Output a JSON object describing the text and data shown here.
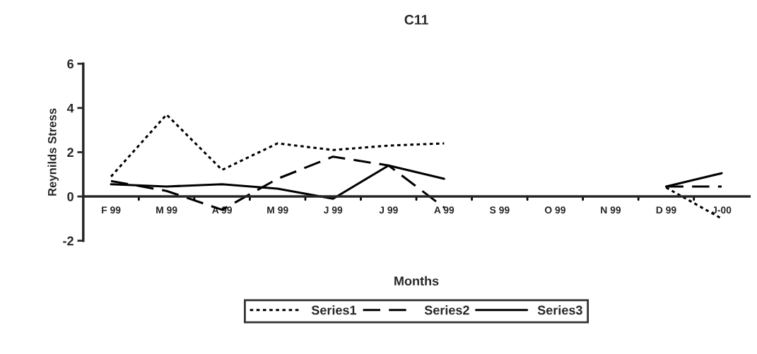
{
  "chart_data": {
    "type": "line",
    "title": "C11",
    "xlabel": "Months",
    "ylabel": "Reynilds Stress",
    "categories": [
      "F 99",
      "M 99",
      "A 99",
      "M 99",
      "J 99",
      "J 99",
      "A 99",
      "S 99",
      "O 99",
      "N 99",
      "D 99",
      "J-00"
    ],
    "series": [
      {
        "name": "Series1",
        "color": "#000000",
        "line_style": "dotted",
        "values": [
          0.9,
          3.7,
          1.2,
          2.4,
          2.1,
          2.3,
          2.4,
          null,
          null,
          null,
          0.4,
          -1.0
        ]
      },
      {
        "name": "Series2",
        "color": "#000000",
        "line_style": "dashed",
        "values": [
          0.7,
          0.25,
          -0.6,
          0.8,
          1.8,
          1.4,
          -0.5,
          null,
          null,
          null,
          0.45,
          0.45
        ]
      },
      {
        "name": "Series3",
        "color": "#000000",
        "line_style": "solid",
        "values": [
          0.55,
          0.45,
          0.55,
          0.35,
          -0.1,
          1.4,
          0.8,
          null,
          null,
          null,
          0.45,
          1.05
        ]
      }
    ],
    "ylim": [
      -2,
      6
    ],
    "yticks": [
      -2,
      0,
      2,
      4,
      6
    ],
    "grid": false,
    "legend": "bottom",
    "marker": "none"
  }
}
